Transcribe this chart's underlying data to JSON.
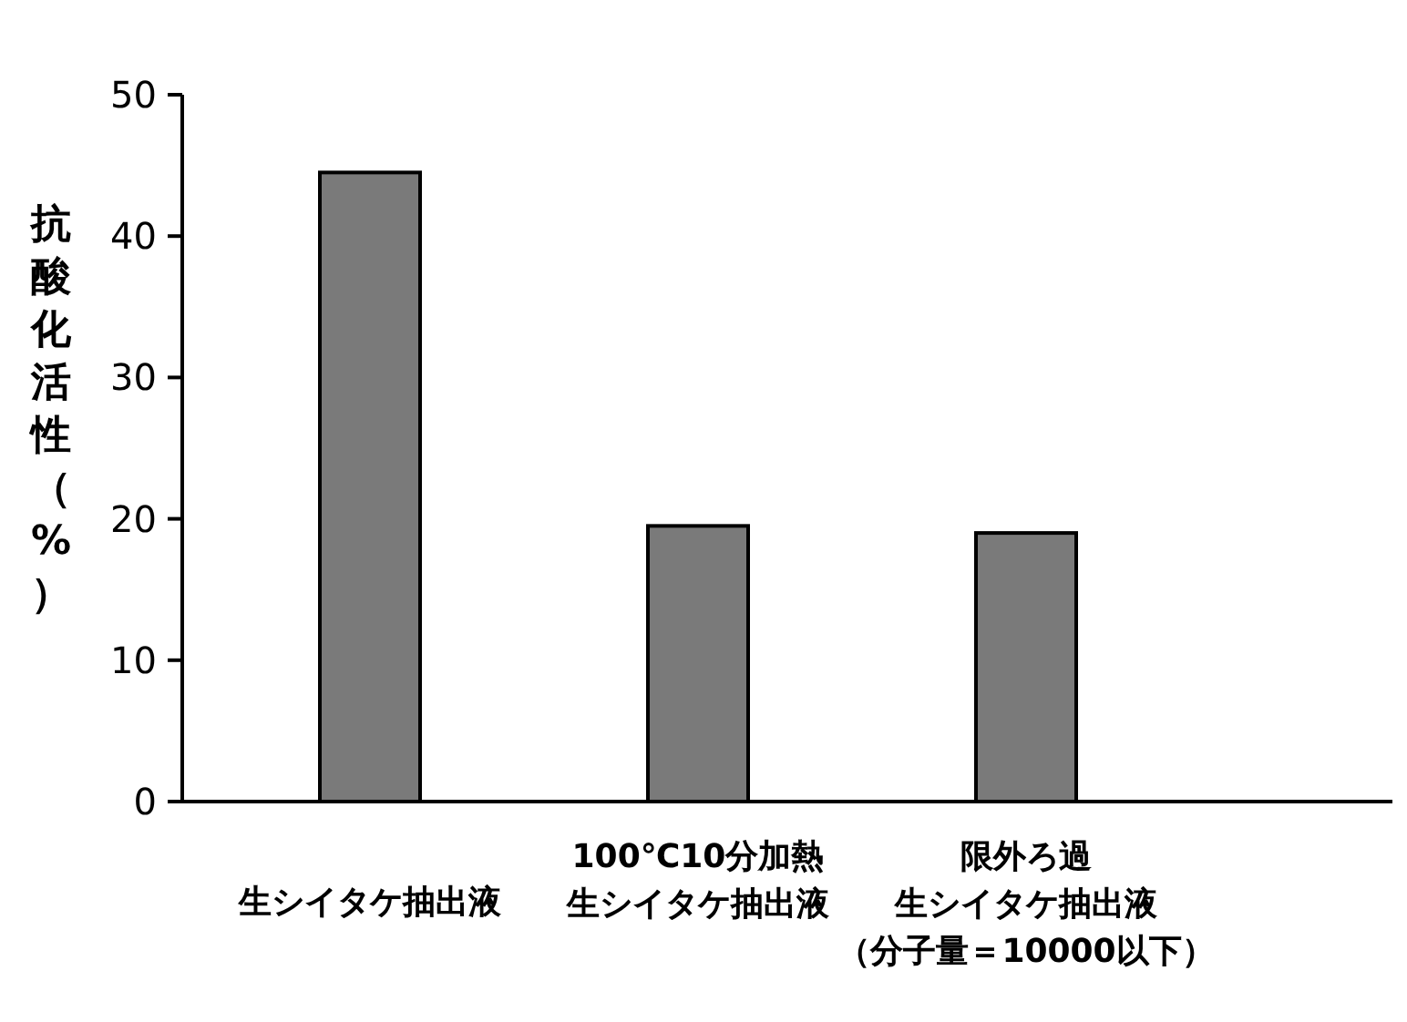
{
  "chart_data": {
    "type": "bar",
    "ylabel": "抗酸化活性（%）",
    "categories": [
      "生シイタケ抽出液",
      "100℃10分加熱生シイタケ抽出液",
      "限外ろ過生シイタケ抽出液（分子量＝10000以下）"
    ],
    "values": [
      44.5,
      19.5,
      19
    ],
    "color": "#7a7a7a",
    "ylim": [
      0,
      50
    ],
    "yticks": [
      0,
      10,
      20,
      30,
      40,
      50
    ]
  }
}
